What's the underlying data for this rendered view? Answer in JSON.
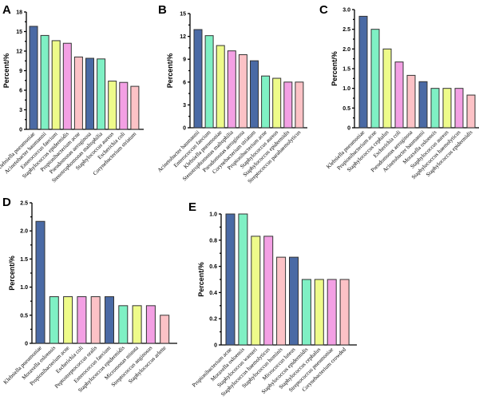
{
  "chart_data": [
    {
      "panel": "A",
      "type": "bar",
      "title": "",
      "xlabel": "",
      "ylabel": "Percent/%",
      "ylim": [
        0,
        18
      ],
      "yticks": [
        0,
        3,
        6,
        9,
        12,
        15,
        18
      ],
      "categories": [
        "Klebsiella pneumoniae",
        "Acinetobacter baumannii",
        "Enterococcus faecium",
        "Staphylococcus epidermidis",
        "Propionibacterium acne",
        "Pseudomonas aeruginosa",
        "Stenotrophomonas maltophilia",
        "Staphylococcus aureus",
        "Escherichia coli",
        "Corynebacterium striatum"
      ],
      "values": [
        15.8,
        14.4,
        13.6,
        13.2,
        11.1,
        10.9,
        10.8,
        7.4,
        7.2,
        6.6
      ],
      "grid": false,
      "legend": "none"
    },
    {
      "panel": "B",
      "type": "bar",
      "title": "",
      "xlabel": "",
      "ylabel": "Percent/%",
      "ylim": [
        0,
        15
      ],
      "yticks": [
        0,
        3,
        6,
        9,
        12,
        15
      ],
      "categories": [
        "Acinetobacter baumannii",
        "Enterococcus faecium",
        "Klebsiella pneumoniae",
        "Stenotrophomonas maltophilia",
        "Pseudomonas aeruginosa",
        "Corynebacterium striatum",
        "Propionibacterium acne",
        "Staphylococcus aureus",
        "Staphylococcus epidermidis",
        "Streptococcus parahaemolyticus"
      ],
      "values": [
        12.9,
        12.1,
        10.8,
        10.1,
        9.6,
        8.8,
        6.8,
        6.5,
        6.0,
        6.0
      ],
      "grid": false,
      "legend": "none"
    },
    {
      "panel": "C",
      "type": "bar",
      "title": "",
      "xlabel": "",
      "ylabel": "Percent/%",
      "ylim": [
        0,
        3.0
      ],
      "yticks": [
        "0",
        "0.5",
        "1.0",
        "1.5",
        "2.0",
        "2.5",
        "3.0"
      ],
      "categories": [
        "Klebsiella pneumoniae",
        "Propionibacterium acne",
        "Staphylococcus cephalus",
        "Escherichia coli",
        "Pseudomonas aeruginosa",
        "Acinetobacter baumannii",
        "Moraxella osloensis",
        "Staphylococcus aureus",
        "Staphylococcus haemolyticus",
        "Staphylococcus epidermidis"
      ],
      "values": [
        2.83,
        2.5,
        2.0,
        1.67,
        1.33,
        1.17,
        1.0,
        1.0,
        1.0,
        0.83
      ],
      "grid": false,
      "legend": "none"
    },
    {
      "panel": "D",
      "type": "bar",
      "title": "",
      "xlabel": "",
      "ylabel": "Percent/%",
      "ylim": [
        0,
        2.5
      ],
      "yticks": [
        "0",
        "0.5",
        "1.0",
        "1.5",
        "2.0",
        "2.5"
      ],
      "categories": [
        "Klebsiella pneumoniae",
        "Moraxella osloensis",
        "Propionibacterium acne",
        "Escherichia coli",
        "Peptostreptococcus oralis",
        "Enterococcus faecium",
        "Staphylococcus epidermidis",
        "Micromonas minuta",
        "Streptococcus anginosus",
        "Staphylococcus arlette"
      ],
      "values": [
        2.17,
        0.83,
        0.83,
        0.83,
        0.83,
        0.83,
        0.67,
        0.67,
        0.67,
        0.5
      ],
      "grid": false,
      "legend": "none"
    },
    {
      "panel": "E",
      "type": "bar",
      "title": "",
      "xlabel": "",
      "ylabel": "Percent/%",
      "ylim": [
        0,
        1.0
      ],
      "yticks": [
        "0",
        "0.2",
        "0.4",
        "0.6",
        "0.8",
        "1.0"
      ],
      "categories": [
        "Propionibacterium acne",
        "Moraxella osloensis",
        "Staphylococcus warneri",
        "Staphylococcus haemolyticus",
        "Staphylococcus hominis",
        "Micrococcus luteus",
        "Staphylococcus epidermidis",
        "Staphylococcus cephalus",
        "Streptococcus pneumoniae",
        "Corynebacterium crowded"
      ],
      "values": [
        1.0,
        1.0,
        0.83,
        0.83,
        0.67,
        0.67,
        0.5,
        0.5,
        0.5,
        0.5
      ],
      "grid": false,
      "legend": "none"
    }
  ],
  "bar_colors": [
    "#4a6aa5",
    "#7ff0c4",
    "#eefb8a",
    "#f3a0e4",
    "#fcc2c6"
  ]
}
